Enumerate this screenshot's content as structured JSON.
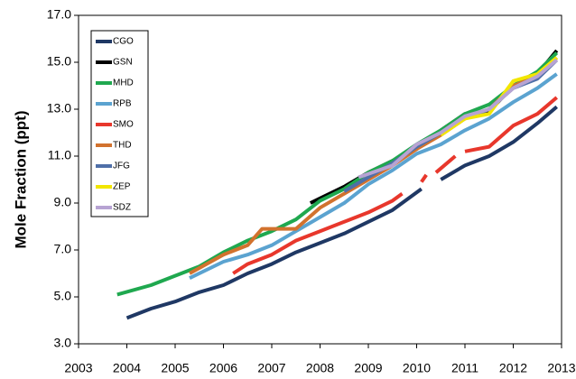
{
  "chart_data": {
    "type": "line",
    "y_label": "Mole Fraction (ppt)",
    "xlim": [
      2003,
      2013
    ],
    "xticks": [
      2003,
      2004,
      2005,
      2006,
      2007,
      2008,
      2009,
      2010,
      2011,
      2012,
      2013
    ],
    "ylim": [
      3,
      17
    ],
    "yticks": [
      {
        "value": 3,
        "label": "3.0"
      },
      {
        "value": 5,
        "label": "5.0"
      },
      {
        "value": 7,
        "label": "7.0"
      },
      {
        "value": 9,
        "label": "9.0"
      },
      {
        "value": 11,
        "label": "11.0"
      },
      {
        "value": 13,
        "label": "13.0"
      },
      {
        "value": 15,
        "label": "15.0"
      },
      {
        "value": 17,
        "label": "17.0"
      }
    ],
    "series": [
      {
        "name": "CGO",
        "color": "#1f3864",
        "x": [
          2004.0,
          2004.5,
          2005.0,
          2005.5,
          2006.0,
          2006.5,
          2007.0,
          2007.5,
          2008.0,
          2008.5,
          2009.0,
          2009.5,
          2010.1,
          2010.2,
          2010.5,
          2011.0,
          2011.5,
          2012.0,
          2012.5,
          2012.9
        ],
        "values": [
          4.1,
          4.5,
          4.8,
          5.2,
          5.5,
          6.0,
          6.4,
          6.9,
          7.3,
          7.7,
          8.2,
          8.7,
          9.6,
          null,
          10.0,
          10.6,
          11.0,
          11.6,
          12.4,
          13.1
        ]
      },
      {
        "name": "GSN",
        "color": "#000000",
        "x": [
          2007.8,
          2008.0,
          2008.5,
          2009.0,
          2009.5,
          2010.0,
          2010.5,
          2011.0,
          2011.5,
          2012.0,
          2012.5,
          2012.9
        ],
        "values": [
          9.0,
          9.2,
          9.7,
          10.3,
          10.8,
          11.3,
          12.1,
          12.8,
          12.9,
          14.0,
          14.5,
          15.5
        ]
      },
      {
        "name": "MHD",
        "color": "#1fa84f",
        "x": [
          2003.8,
          2004.5,
          2005.0,
          2005.5,
          2006.0,
          2006.5,
          2007.0,
          2007.5,
          2008.0,
          2008.5,
          2009.0,
          2009.5,
          2010.0,
          2010.5,
          2011.0,
          2011.5,
          2012.0,
          2012.5,
          2012.9
        ],
        "values": [
          5.1,
          5.5,
          5.9,
          6.3,
          6.9,
          7.4,
          7.8,
          8.3,
          9.1,
          9.6,
          10.3,
          10.8,
          11.5,
          12.1,
          12.8,
          13.2,
          14.0,
          14.6,
          15.4
        ]
      },
      {
        "name": "RPB",
        "color": "#5ba3d0",
        "x": [
          2005.3,
          2006.0,
          2006.5,
          2007.0,
          2007.5,
          2008.0,
          2008.5,
          2009.0,
          2009.5,
          2010.0,
          2010.5,
          2011.0,
          2011.5,
          2012.0,
          2012.5,
          2012.9
        ],
        "values": [
          5.8,
          6.5,
          6.8,
          7.2,
          7.8,
          8.4,
          9.0,
          9.8,
          10.4,
          11.1,
          11.5,
          12.1,
          12.6,
          13.3,
          13.9,
          14.5
        ]
      },
      {
        "name": "SMO",
        "color": "#e8372c",
        "x": [
          2006.2,
          2006.5,
          2007.0,
          2007.5,
          2008.0,
          2008.5,
          2009.0,
          2009.5,
          2009.7,
          2009.9,
          2010.1,
          2010.2,
          2010.3,
          2010.4,
          2010.8,
          2010.9,
          2011.0,
          2011.5,
          2012.0,
          2012.5,
          2012.9
        ],
        "values": [
          6.0,
          6.4,
          6.8,
          7.4,
          7.8,
          8.2,
          8.6,
          9.1,
          9.4,
          null,
          9.9,
          10.2,
          null,
          10.3,
          11.0,
          null,
          11.2,
          11.4,
          12.3,
          12.8,
          13.5
        ]
      },
      {
        "name": "THD",
        "color": "#d2722e",
        "x": [
          2005.3,
          2006.0,
          2006.5,
          2006.8,
          2007.5,
          2008.0,
          2008.5,
          2009.0,
          2009.5,
          2010.0,
          2010.5,
          2011.0,
          2011.5,
          2012.0,
          2012.5,
          2012.9
        ],
        "values": [
          6.0,
          6.8,
          7.2,
          7.9,
          7.9,
          8.8,
          9.4,
          10.0,
          10.6,
          11.3,
          11.9,
          12.6,
          13.0,
          14.0,
          14.4,
          15.2
        ]
      },
      {
        "name": "JFG",
        "color": "#4f6fa8",
        "x": [
          2008.5,
          2009.0,
          2009.5,
          2010.0,
          2010.5,
          2011.0,
          2011.5,
          2012.0,
          2012.5,
          2012.9
        ],
        "values": [
          9.5,
          10.1,
          10.7,
          11.4,
          12.0,
          12.6,
          13.0,
          13.9,
          14.3,
          15.1
        ]
      },
      {
        "name": "ZEP",
        "color": "#f2e600",
        "x": [
          2010.5,
          2011.0,
          2011.5,
          2012.0,
          2012.5,
          2012.9
        ],
        "values": [
          11.9,
          12.6,
          12.8,
          14.2,
          14.5,
          15.2
        ]
      },
      {
        "name": "SDZ",
        "color": "#b7a3d3",
        "x": [
          2008.8,
          2009.5,
          2010.0,
          2010.5,
          2011.0,
          2011.5,
          2012.0,
          2012.5,
          2012.9
        ],
        "values": [
          10.1,
          10.6,
          11.5,
          12.0,
          12.7,
          13.0,
          13.9,
          14.4,
          15.1
        ]
      }
    ]
  }
}
